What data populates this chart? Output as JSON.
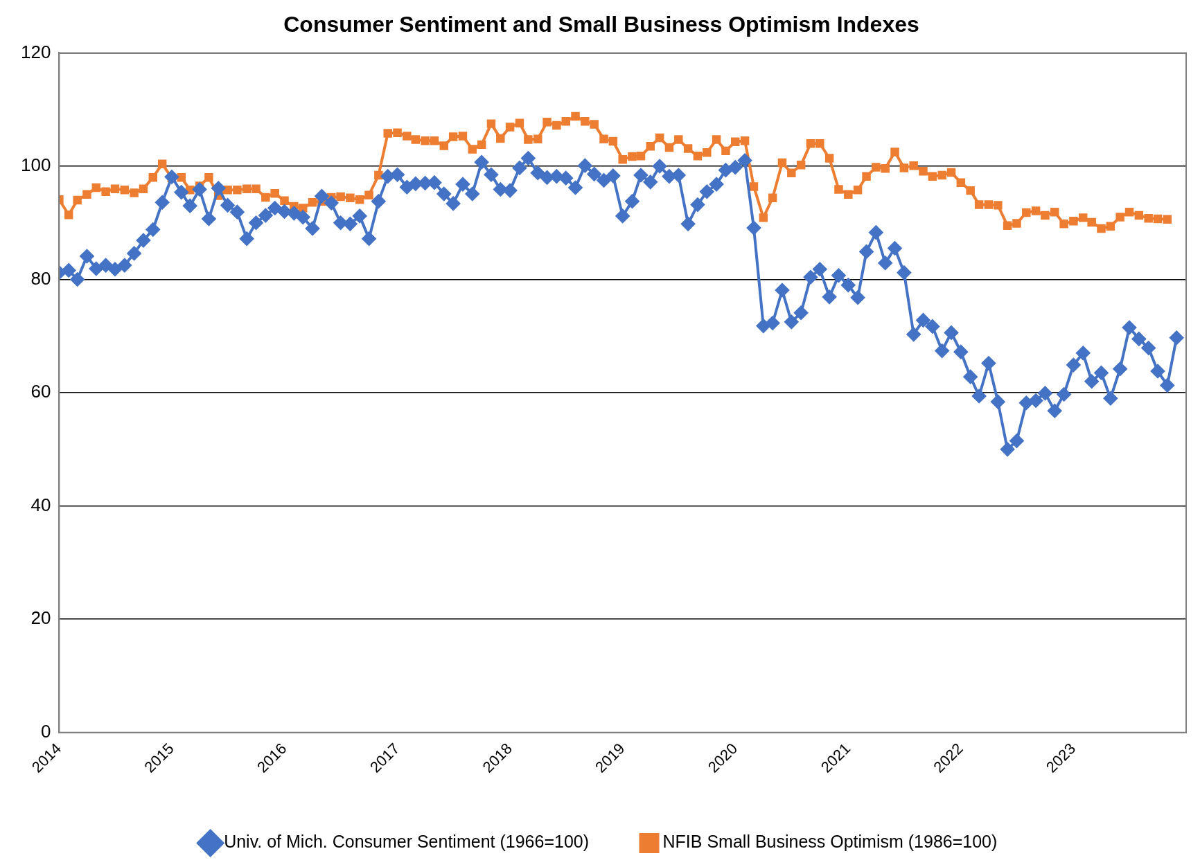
{
  "chart_data": {
    "type": "line",
    "title": "Consumer Sentiment and Small Business Optimism Indexes",
    "x": [
      "2014-01",
      "2014-02",
      "2014-03",
      "2014-04",
      "2014-05",
      "2014-06",
      "2014-07",
      "2014-08",
      "2014-09",
      "2014-10",
      "2014-11",
      "2014-12",
      "2015-01",
      "2015-02",
      "2015-03",
      "2015-04",
      "2015-05",
      "2015-06",
      "2015-07",
      "2015-08",
      "2015-09",
      "2015-10",
      "2015-11",
      "2015-12",
      "2016-01",
      "2016-02",
      "2016-03",
      "2016-04",
      "2016-05",
      "2016-06",
      "2016-07",
      "2016-08",
      "2016-09",
      "2016-10",
      "2016-11",
      "2016-12",
      "2017-01",
      "2017-02",
      "2017-03",
      "2017-04",
      "2017-05",
      "2017-06",
      "2017-07",
      "2017-08",
      "2017-09",
      "2017-10",
      "2017-11",
      "2017-12",
      "2018-01",
      "2018-02",
      "2018-03",
      "2018-04",
      "2018-05",
      "2018-06",
      "2018-07",
      "2018-08",
      "2018-09",
      "2018-10",
      "2018-11",
      "2018-12",
      "2019-01",
      "2019-02",
      "2019-03",
      "2019-04",
      "2019-05",
      "2019-06",
      "2019-07",
      "2019-08",
      "2019-09",
      "2019-10",
      "2019-11",
      "2019-12",
      "2020-01",
      "2020-02",
      "2020-03",
      "2020-04",
      "2020-05",
      "2020-06",
      "2020-07",
      "2020-08",
      "2020-09",
      "2020-10",
      "2020-11",
      "2020-12",
      "2021-01",
      "2021-02",
      "2021-03",
      "2021-04",
      "2021-05",
      "2021-06",
      "2021-07",
      "2021-08",
      "2021-09",
      "2021-10",
      "2021-11",
      "2021-12",
      "2022-01",
      "2022-02",
      "2022-03",
      "2022-04",
      "2022-05",
      "2022-06",
      "2022-07",
      "2022-08",
      "2022-09",
      "2022-10",
      "2022-11",
      "2022-12",
      "2023-01",
      "2023-02",
      "2023-03",
      "2023-04",
      "2023-05",
      "2023-06",
      "2023-07",
      "2023-08",
      "2023-09",
      "2023-10",
      "2023-11",
      "2023-12"
    ],
    "series": [
      {
        "name": "Univ. of Mich. Consumer Sentiment (1966=100)",
        "color": "#4472c4",
        "marker": "diamond",
        "values": [
          81.2,
          81.6,
          80.0,
          84.1,
          81.9,
          82.5,
          81.8,
          82.5,
          84.6,
          86.9,
          88.8,
          93.6,
          98.1,
          95.4,
          93.0,
          95.9,
          90.7,
          96.1,
          93.1,
          91.9,
          87.2,
          90.0,
          91.3,
          92.6,
          92.0,
          91.7,
          91.0,
          89.0,
          94.7,
          93.5,
          90.0,
          89.8,
          91.2,
          87.2,
          93.8,
          98.2,
          98.5,
          96.3,
          96.9,
          97.0,
          97.1,
          95.1,
          93.4,
          96.8,
          95.1,
          100.7,
          98.5,
          95.9,
          95.7,
          99.7,
          101.4,
          98.8,
          98.0,
          98.2,
          97.9,
          96.2,
          100.1,
          98.6,
          97.5,
          98.3,
          91.2,
          93.8,
          98.4,
          97.2,
          100.0,
          98.2,
          98.4,
          89.8,
          93.2,
          95.5,
          96.8,
          99.3,
          99.8,
          101.0,
          89.1,
          71.8,
          72.3,
          78.1,
          72.5,
          74.1,
          80.4,
          81.8,
          76.9,
          80.7,
          79.0,
          76.8,
          84.9,
          88.3,
          82.9,
          85.5,
          81.2,
          70.3,
          72.8,
          71.7,
          67.4,
          70.6,
          67.2,
          62.8,
          59.4,
          65.2,
          58.4,
          50.0,
          51.5,
          58.2,
          58.6,
          59.9,
          56.8,
          59.7,
          64.9,
          67.0,
          62.0,
          63.5,
          59.0,
          64.2,
          71.5,
          69.5,
          67.9,
          63.8,
          61.3,
          69.7
        ]
      },
      {
        "name": "NFIB Small Business Optimism (1986=100)",
        "color": "#ed7d31",
        "marker": "square",
        "values": [
          94.1,
          91.4,
          94.0,
          95.0,
          96.2,
          95.5,
          96.0,
          95.8,
          95.3,
          96.0,
          98.0,
          100.4,
          97.9,
          98.0,
          95.8,
          96.5,
          98.0,
          94.8,
          95.8,
          95.8,
          96.0,
          96.0,
          94.5,
          95.2,
          93.9,
          92.9,
          92.6,
          93.6,
          93.8,
          94.5,
          94.6,
          94.4,
          94.1,
          94.9,
          98.4,
          105.8,
          105.9,
          105.3,
          104.7,
          104.5,
          104.5,
          103.6,
          105.2,
          105.3,
          103.0,
          103.8,
          107.5,
          104.9,
          106.9,
          107.6,
          104.7,
          104.8,
          107.8,
          107.2,
          107.9,
          108.8,
          107.9,
          107.4,
          104.8,
          104.4,
          101.2,
          101.7,
          101.8,
          103.5,
          105.0,
          103.3,
          104.7,
          103.1,
          101.8,
          102.4,
          104.7,
          102.7,
          104.3,
          104.5,
          96.4,
          90.9,
          94.4,
          100.6,
          98.8,
          100.2,
          104.0,
          104.0,
          101.4,
          95.9,
          95.0,
          95.8,
          98.2,
          99.8,
          99.6,
          102.5,
          99.7,
          100.1,
          99.1,
          98.2,
          98.4,
          98.9,
          97.1,
          95.7,
          93.2,
          93.2,
          93.1,
          89.5,
          89.9,
          91.8,
          92.1,
          91.3,
          91.9,
          89.8,
          90.3,
          90.9,
          90.1,
          89.0,
          89.4,
          91.0,
          91.9,
          91.3,
          90.8,
          90.7,
          90.6,
          null
        ]
      }
    ],
    "xlim": [
      "2014-01",
      "2024-01"
    ],
    "xticks": [
      "2014",
      "2015",
      "2016",
      "2017",
      "2018",
      "2019",
      "2020",
      "2021",
      "2022",
      "2023"
    ],
    "ylim": [
      0,
      120
    ],
    "yticks": [
      0,
      20,
      40,
      60,
      80,
      100,
      120
    ],
    "grid": "y",
    "legend": "bottom",
    "line_style": "solid"
  }
}
